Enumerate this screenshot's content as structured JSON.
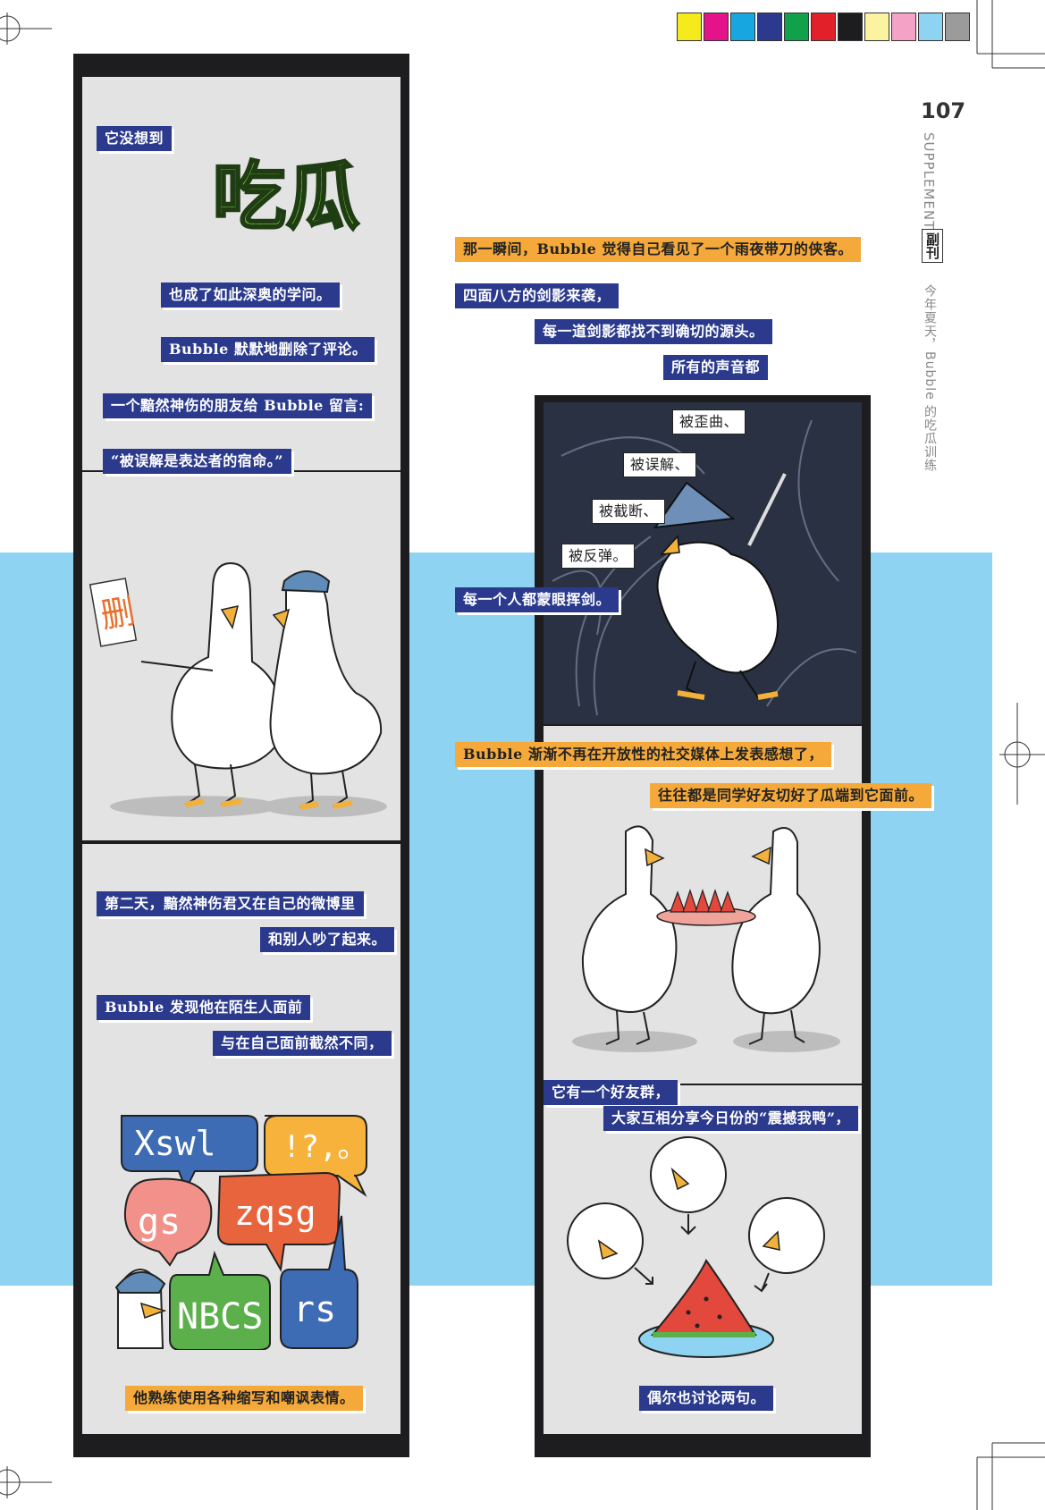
{
  "header": {
    "page_number": "107",
    "section_en": "SUPPLEMENT",
    "section_cn": "副刊",
    "article_title": "今年夏天，Bubble 的吃瓜训练",
    "color_bar": [
      "#f5ea1c",
      "#e5138a",
      "#18a6e0",
      "#2b3a8c",
      "#10a14a",
      "#e2202a",
      "#1d1d1f",
      "#fbf3a0",
      "#f4a3c7",
      "#8fd3f2",
      "#9b9b9b"
    ]
  },
  "left_strip": {
    "title_art": "吃瓜",
    "captions": {
      "c1": "它没想到",
      "c2": "也成了如此深奥的学问。",
      "c3": "Bubble 默默地删除了评论。",
      "c4": "一个黯然神伤的朋友给 Bubble 留言:",
      "c5": "“被误解是表达者的宿命。”",
      "sign": "删",
      "c6": "第二天，黯然神伤君又在自己的微博里",
      "c7": "和别人吵了起来。",
      "c8": "Bubble 发现他在陌生人面前",
      "c9": "与在自己面前截然不同，",
      "c10": "他熟练使用各种缩写和嘲讽表情。"
    },
    "bubbles": {
      "b1": "Xswl",
      "b2": "!?,。",
      "b3": "gs",
      "b4": "zqsg",
      "b5": "NBCS",
      "b6": "rs"
    }
  },
  "right_strip": {
    "captions": {
      "c1": "那一瞬间，Bubble 觉得自己看见了一个雨夜带刀的侠客。",
      "c2": "四面八方的剑影来袭，",
      "c3": "每一道剑影都找不到确切的源头。",
      "c4": "所有的声音都",
      "c5": "被歪曲、",
      "c6": "被误解、",
      "c7": "被截断、",
      "c8": "被反弹。",
      "c9": "每一个人都蒙眼挥剑。",
      "c10": "Bubble 渐渐不再在开放性的社交媒体上发表感想了，",
      "c11": "往往都是同学好友切好了瓜端到它面前。",
      "c12": "它有一个好友群，",
      "c13": "大家互相分享今日份的“震撼我鸭”，",
      "c14": "偶尔也讨论两句。"
    }
  }
}
